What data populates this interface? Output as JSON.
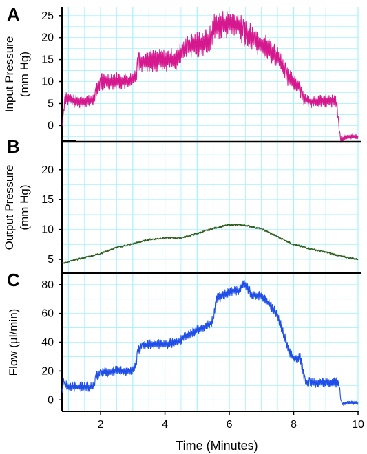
{
  "chart_data": [
    {
      "panel": "A",
      "type": "line",
      "ylabel_lines": [
        "Input Pressure",
        "(mm Hg)"
      ],
      "yticks": [
        0,
        5,
        10,
        15,
        20,
        25
      ],
      "ylim": [
        -3.7,
        27
      ],
      "xlim": [
        0.8,
        10
      ],
      "xticks": [
        2,
        4,
        6,
        8,
        10
      ],
      "grid": true,
      "color": "#d6188f",
      "oscillation": true,
      "series": [
        {
          "x": [
            0.8,
            0.85,
            0.9,
            1.0,
            1.2,
            1.5,
            1.7,
            1.8,
            1.85,
            2.0,
            2.4,
            2.8,
            3.0,
            3.1,
            3.15,
            3.2,
            3.5,
            3.8,
            4.2,
            4.4,
            4.5,
            4.55,
            4.7,
            5.0,
            5.3,
            5.45,
            5.5,
            5.8,
            6.0,
            6.3,
            6.4,
            6.45,
            6.8,
            7.0,
            7.2,
            7.5,
            7.75,
            7.8,
            8.0,
            8.2,
            8.25,
            8.3,
            8.5,
            8.8,
            9.0,
            9.3,
            9.35,
            9.4,
            9.45,
            9.5,
            9.7,
            10.0
          ],
          "y": [
            -0.5,
            3,
            6.5,
            6,
            5.5,
            5.5,
            5.7,
            5.8,
            7.5,
            10,
            10.2,
            10,
            10.2,
            11.5,
            13.5,
            14.5,
            14.8,
            14.8,
            15,
            15.2,
            16.5,
            17,
            17.6,
            18.5,
            19,
            19.8,
            22.5,
            23,
            23.2,
            22.8,
            21.5,
            21,
            19.5,
            18.5,
            17.5,
            15.5,
            12.5,
            11,
            10,
            8.5,
            7,
            6,
            5.5,
            5.5,
            5.6,
            5.5,
            4,
            0,
            -3.2,
            -3,
            -2.6,
            -2.4
          ]
        }
      ]
    },
    {
      "panel": "B",
      "type": "line",
      "ylabel_lines": [
        "Output Pressure",
        "(mm Hg)"
      ],
      "yticks": [
        5,
        10,
        15,
        20
      ],
      "ylim": [
        2.7,
        24.7
      ],
      "xlim": [
        0.8,
        10
      ],
      "xticks": [
        2,
        4,
        6,
        8,
        10
      ],
      "grid": true,
      "color": "#2e5f1f",
      "series": [
        {
          "x": [
            0.8,
            1.0,
            1.5,
            2.0,
            2.5,
            3.0,
            3.5,
            4.0,
            4.5,
            5.0,
            5.5,
            6.0,
            6.5,
            7.0,
            7.5,
            8.0,
            8.5,
            9.0,
            9.5,
            10.0
          ],
          "y": [
            4.3,
            4.6,
            5.3,
            6.0,
            7.0,
            7.6,
            8.3,
            8.6,
            8.6,
            9.3,
            10.2,
            10.8,
            10.7,
            10.1,
            8.8,
            7.5,
            6.8,
            6.2,
            5.5,
            5.0
          ]
        }
      ]
    },
    {
      "panel": "C",
      "type": "line",
      "ylabel_lines": [
        "Flow (µl/min)"
      ],
      "yticks": [
        0,
        20,
        40,
        60,
        80
      ],
      "ylim": [
        -8,
        88
      ],
      "xlim": [
        0.8,
        10
      ],
      "xticks": [
        2,
        4,
        6,
        8,
        10
      ],
      "xlabel": "Time (Minutes)",
      "grid": true,
      "color": "#1f4fe8",
      "oscillation": true,
      "series": [
        {
          "x": [
            0.8,
            0.85,
            0.9,
            1.0,
            1.5,
            1.8,
            1.85,
            2.0,
            2.5,
            3.0,
            3.1,
            3.15,
            3.3,
            3.8,
            4.2,
            4.4,
            4.6,
            5.0,
            5.3,
            5.5,
            5.6,
            6.0,
            6.3,
            6.4,
            6.5,
            6.7,
            6.9,
            7.0,
            7.3,
            7.5,
            7.6,
            7.8,
            7.9,
            8.0,
            8.2,
            8.3,
            8.35,
            8.5,
            9.0,
            9.4,
            9.45,
            9.5,
            9.7,
            10.0
          ],
          "y": [
            6,
            13,
            10,
            9,
            9,
            9,
            16,
            19,
            20,
            20,
            25,
            33,
            38,
            38.5,
            39,
            40,
            44,
            48,
            51,
            55,
            70,
            75,
            76,
            80,
            80,
            73,
            72,
            72,
            65,
            58,
            52,
            38,
            32,
            29,
            29,
            20,
            13,
            12,
            12,
            12,
            2,
            -3,
            -2,
            -2
          ]
        }
      ]
    }
  ]
}
